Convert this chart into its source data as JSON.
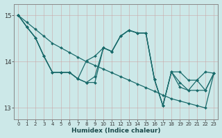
{
  "xlabel": "Humidex (Indice chaleur)",
  "bg_color": "#cce8e8",
  "line_color": "#1a6b6b",
  "grid_color": "#b8d8d8",
  "xlim": [
    -0.5,
    23.5
  ],
  "ylim": [
    12.75,
    15.25
  ],
  "yticks": [
    13,
    14,
    15
  ],
  "xticks": [
    0,
    1,
    2,
    3,
    4,
    5,
    6,
    7,
    8,
    9,
    10,
    11,
    12,
    13,
    14,
    15,
    16,
    17,
    18,
    19,
    20,
    21,
    22,
    23
  ],
  "series": [
    [
      15.0,
      14.85,
      14.7,
      14.55,
      14.4,
      14.3,
      14.2,
      14.1,
      14.0,
      13.92,
      13.84,
      13.76,
      13.68,
      13.6,
      13.52,
      13.44,
      13.36,
      13.28,
      13.2,
      13.15,
      13.1,
      13.05,
      13.0,
      13.75
    ],
    [
      15.0,
      14.75,
      14.52,
      14.12,
      13.77,
      13.77,
      13.77,
      13.63,
      13.55,
      13.68,
      14.3,
      14.22,
      14.55,
      14.68,
      14.62,
      14.62,
      13.62,
      13.05,
      13.78,
      13.78,
      13.6,
      13.6,
      13.38,
      13.75
    ],
    [
      15.0,
      14.75,
      14.52,
      14.12,
      13.77,
      13.77,
      13.77,
      13.63,
      14.02,
      14.12,
      14.3,
      14.22,
      14.55,
      14.68,
      14.62,
      14.62,
      13.62,
      13.05,
      13.78,
      13.55,
      13.38,
      13.6,
      13.78,
      13.75
    ],
    [
      15.0,
      14.75,
      14.52,
      14.12,
      13.77,
      13.77,
      13.77,
      13.63,
      13.55,
      13.55,
      14.3,
      14.22,
      14.55,
      14.68,
      14.62,
      14.62,
      13.62,
      13.05,
      13.78,
      13.45,
      13.38,
      13.38,
      13.38,
      13.75
    ]
  ]
}
